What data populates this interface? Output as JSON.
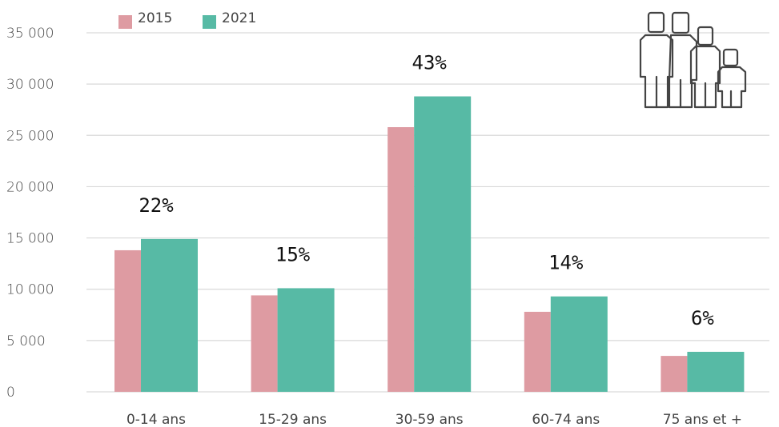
{
  "chart_data": {
    "type": "bar",
    "categories": [
      "0-14 ans",
      "15-29 ans",
      "30-59 ans",
      "60-74 ans",
      "75 ans et +"
    ],
    "series": [
      {
        "name": "2015",
        "values": [
          13800,
          9400,
          25800,
          7800,
          3500
        ],
        "color": "#DE9BA2"
      },
      {
        "name": "2021",
        "values": [
          14900,
          10100,
          28800,
          9300,
          3900
        ],
        "color": "#57BAA5"
      }
    ],
    "data_labels": [
      "22%",
      "15%",
      "43%",
      "14%",
      "6%"
    ],
    "ylim": [
      0,
      35000
    ],
    "yticks": [
      0,
      5000,
      10000,
      15000,
      20000,
      25000,
      30000,
      35000
    ],
    "ytick_labels": [
      "0",
      "5 000",
      "10 000",
      "15 000",
      "20 000",
      "25 000",
      "30 000",
      "35 000"
    ],
    "grid": true,
    "legend_position": "top-left",
    "title": "",
    "xlabel": "",
    "ylabel": ""
  },
  "decoration": {
    "icon": "family-icon",
    "stroke_color": "#444444"
  },
  "colors": {
    "grid": "#d9d9d9",
    "text": "#444444"
  }
}
